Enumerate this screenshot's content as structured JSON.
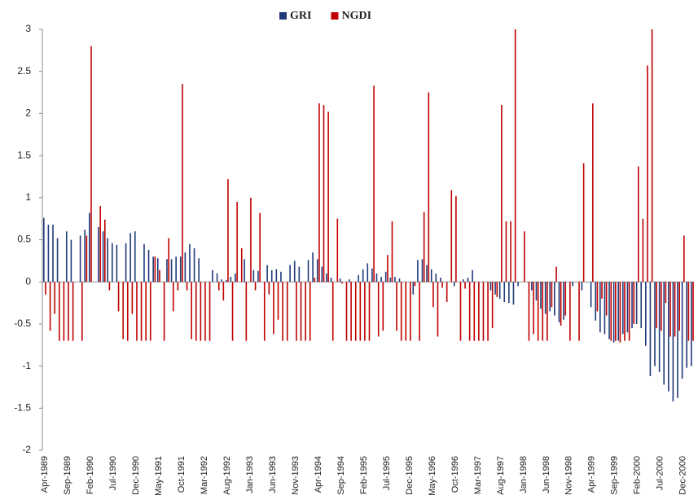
{
  "chart_data": {
    "type": "bar",
    "categories": [
      "Apr-1989",
      null,
      null,
      null,
      null,
      "Sep-1989",
      null,
      null,
      null,
      null,
      "Feb-1990",
      null,
      null,
      null,
      null,
      "Jul-1990",
      null,
      null,
      null,
      null,
      "Dec-1990",
      null,
      null,
      null,
      null,
      "May-1991",
      null,
      null,
      null,
      null,
      "Oct-1991",
      null,
      null,
      null,
      null,
      "Mar-1992",
      null,
      null,
      null,
      null,
      "Aug-1992",
      null,
      null,
      null,
      null,
      "Jan-1993",
      null,
      null,
      null,
      null,
      "Jun-1993",
      null,
      null,
      null,
      null,
      "Nov-1993",
      null,
      null,
      null,
      null,
      "Apr-1994",
      null,
      null,
      null,
      null,
      "Sep-1994",
      null,
      null,
      null,
      null,
      "Feb-1995",
      null,
      null,
      null,
      null,
      "Jul-1995",
      null,
      null,
      null,
      null,
      "Dec-1995",
      null,
      null,
      null,
      null,
      "May-1996",
      null,
      null,
      null,
      null,
      "Oct-1996",
      null,
      null,
      null,
      null,
      "Mar-1997",
      null,
      null,
      null,
      null,
      "Aug-1997",
      null,
      null,
      null,
      null,
      "Jan-1998",
      null,
      null,
      null,
      null,
      "Jun-1998",
      null,
      null,
      null,
      null,
      "Nov-1998",
      null,
      null,
      null,
      null,
      "Apr-1999",
      null,
      null,
      null,
      null,
      "Sep-1999",
      null,
      null,
      null,
      null,
      "Feb-2000",
      null,
      null,
      null,
      null,
      "Jul-2000",
      null,
      null,
      null,
      null,
      "Dec-2000",
      null,
      null
    ],
    "series": [
      {
        "name": "GRI",
        "color": "#1f3a7a",
        "values": [
          0.76,
          0.68,
          0.68,
          0.52,
          0,
          0.6,
          0.5,
          0,
          0.55,
          0.62,
          0.82,
          0,
          0.65,
          0.6,
          0.52,
          0.46,
          0.44,
          0,
          0.46,
          0.58,
          0.6,
          0,
          0.45,
          0.38,
          0.3,
          0.28,
          0,
          0.27,
          0.27,
          0.3,
          0.3,
          0.35,
          0.45,
          0.4,
          0.28,
          0,
          0,
          0.14,
          0.1,
          0.03,
          0.02,
          0.06,
          0.1,
          0,
          0.27,
          0,
          0.14,
          0.13,
          0,
          0.2,
          0.14,
          0.15,
          0.12,
          0,
          0.2,
          0.25,
          0.18,
          0,
          0.26,
          0.35,
          0.27,
          0.18,
          0.1,
          0.05,
          0,
          0.04,
          0,
          0.03,
          0,
          0.08,
          0.15,
          0.22,
          0.16,
          0.1,
          0.06,
          0.12,
          0.05,
          0.06,
          0.04,
          0,
          0,
          -0.15,
          0.26,
          0.27,
          0.2,
          0.15,
          0.1,
          0.05,
          0,
          0,
          -0.05,
          0,
          0.03,
          0.05,
          0.14,
          0,
          0,
          0,
          -0.1,
          -0.15,
          -0.2,
          -0.24,
          -0.25,
          -0.27,
          -0.05,
          0,
          0,
          -0.1,
          -0.22,
          -0.32,
          -0.38,
          -0.35,
          -0.4,
          -0.48,
          -0.45,
          0,
          -0.05,
          0,
          -0.1,
          0,
          -0.3,
          -0.46,
          -0.6,
          -0.62,
          -0.68,
          -0.72,
          -0.7,
          -0.62,
          -0.6,
          -0.55,
          -0.5,
          -0.55,
          -0.76,
          -1.12,
          -1.0,
          -1.07,
          -1.22,
          -1.3,
          -1.42,
          -1.38,
          -1.15,
          -1.02,
          -1.0
        ]
      },
      {
        "name": "NGDI",
        "color": "#c00000",
        "values": [
          -0.15,
          -0.58,
          -0.38,
          -0.7,
          -0.7,
          -0.7,
          -0.7,
          0,
          -0.7,
          0.55,
          2.8,
          0,
          0.9,
          0.74,
          -0.1,
          0,
          -0.35,
          -0.68,
          -0.7,
          -0.38,
          -0.7,
          -0.7,
          -0.7,
          -0.7,
          0.3,
          0.14,
          -0.7,
          0.52,
          -0.35,
          -0.1,
          2.35,
          -0.1,
          -0.68,
          -0.7,
          -0.7,
          -0.7,
          -0.7,
          0,
          -0.1,
          -0.22,
          1.22,
          -0.7,
          0.95,
          0.4,
          -0.7,
          1.0,
          -0.1,
          0.82,
          -0.7,
          -0.15,
          -0.62,
          -0.45,
          -0.7,
          -0.7,
          0,
          -0.7,
          -0.7,
          -0.7,
          -0.7,
          0.05,
          2.12,
          2.1,
          2.02,
          -0.7,
          0.75,
          -0.02,
          -0.7,
          -0.7,
          -0.7,
          -0.7,
          -0.7,
          -0.7,
          2.33,
          -0.65,
          -0.58,
          0.32,
          0.72,
          -0.58,
          -0.7,
          -0.7,
          -0.7,
          -0.05,
          -0.7,
          0.83,
          2.25,
          -0.3,
          -0.65,
          -0.07,
          -0.24,
          1.09,
          1.02,
          -0.7,
          -0.08,
          -0.7,
          -0.7,
          -0.7,
          -0.7,
          -0.7,
          -0.55,
          -0.18,
          2.1,
          0.72,
          0.72,
          3.0,
          0,
          0.6,
          -0.7,
          -0.62,
          -0.7,
          -0.7,
          -0.7,
          -0.3,
          0.18,
          -0.52,
          -0.4,
          -0.7,
          0,
          -0.7,
          1.41,
          0,
          2.12,
          -0.35,
          -0.2,
          -0.4,
          -0.7,
          -0.7,
          -0.72,
          -0.7,
          -0.7,
          -0.5,
          1.37,
          0.75,
          2.57,
          3.0,
          -0.55,
          -0.58,
          -0.25,
          -0.65,
          -0.65,
          -0.58,
          0.55,
          -0.7,
          -0.7
        ]
      }
    ],
    "ylim": [
      -2,
      3
    ],
    "yticks": [
      3,
      2.5,
      2,
      1.5,
      1,
      0.5,
      0,
      -0.5,
      -1,
      -1.5,
      -2
    ],
    "legend": "top",
    "grid": false
  }
}
